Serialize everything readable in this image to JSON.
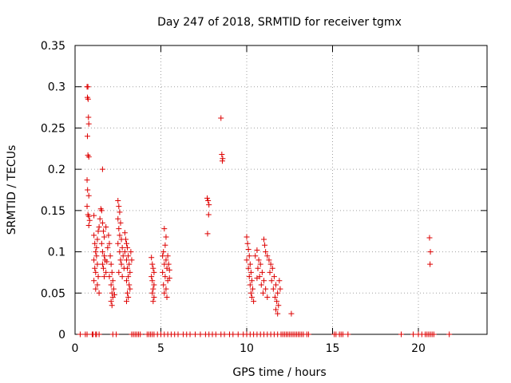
{
  "chart_data": {
    "type": "scatter",
    "title": "Day 247 of 2018, SRMTID for receiver tgmx",
    "xlabel": "GPS time / hours",
    "ylabel": "SRMTID / TECUs",
    "xlim": [
      0,
      24
    ],
    "ylim": [
      0,
      0.35
    ],
    "xticks": [
      0,
      5,
      10,
      15,
      20
    ],
    "xtick_labels": [
      "0",
      "5",
      "10",
      "15",
      "20"
    ],
    "yticks": [
      0,
      0.05,
      0.1,
      0.15,
      0.2,
      0.25,
      0.3,
      0.35
    ],
    "ytick_labels": [
      "0",
      "0.05",
      "0.1",
      "0.15",
      "0.2",
      "0.25",
      "0.3",
      "0.35"
    ],
    "grid": true,
    "marker": "+",
    "color": "#dd0000",
    "series": [
      {
        "name": "SRMTID",
        "points": [
          [
            0.7,
            0.3
          ],
          [
            0.75,
            0.3
          ],
          [
            0.72,
            0.287
          ],
          [
            0.76,
            0.285
          ],
          [
            0.78,
            0.263
          ],
          [
            0.8,
            0.255
          ],
          [
            0.72,
            0.24
          ],
          [
            0.75,
            0.217
          ],
          [
            0.8,
            0.215
          ],
          [
            0.7,
            0.187
          ],
          [
            0.73,
            0.175
          ],
          [
            0.8,
            0.168
          ],
          [
            0.7,
            0.155
          ],
          [
            0.75,
            0.145
          ],
          [
            0.8,
            0.143
          ],
          [
            0.85,
            0.138
          ],
          [
            0.8,
            0.132
          ],
          [
            1.1,
            0.144
          ],
          [
            1.1,
            0.12
          ],
          [
            1.15,
            0.11
          ],
          [
            1.2,
            0.1
          ],
          [
            1.25,
            0.095
          ],
          [
            1.1,
            0.09
          ],
          [
            1.3,
            0.085
          ],
          [
            1.15,
            0.08
          ],
          [
            1.2,
            0.075
          ],
          [
            1.35,
            0.07
          ],
          [
            1.1,
            0.065
          ],
          [
            1.3,
            0.06
          ],
          [
            1.2,
            0.055
          ],
          [
            1.4,
            0.05
          ],
          [
            1.25,
            0.105
          ],
          [
            1.3,
            0.115
          ],
          [
            1.35,
            0.125
          ],
          [
            1.4,
            0.13
          ],
          [
            1.45,
            0.14
          ],
          [
            1.6,
            0.2
          ],
          [
            1.5,
            0.152
          ],
          [
            1.55,
            0.15
          ],
          [
            1.6,
            0.135
          ],
          [
            1.65,
            0.125
          ],
          [
            1.7,
            0.118
          ],
          [
            1.55,
            0.11
          ],
          [
            1.6,
            0.1
          ],
          [
            1.7,
            0.095
          ],
          [
            1.75,
            0.09
          ],
          [
            1.6,
            0.085
          ],
          [
            1.65,
            0.08
          ],
          [
            1.8,
            0.075
          ],
          [
            1.7,
            0.07
          ],
          [
            1.85,
            0.088
          ],
          [
            1.9,
            0.105
          ],
          [
            1.95,
            0.12
          ],
          [
            1.8,
            0.13
          ],
          [
            2.0,
            0.11
          ],
          [
            2.05,
            0.095
          ],
          [
            2.1,
            0.085
          ],
          [
            2.15,
            0.075
          ],
          [
            2.0,
            0.07
          ],
          [
            2.2,
            0.065
          ],
          [
            2.1,
            0.06
          ],
          [
            2.25,
            0.055
          ],
          [
            2.15,
            0.05
          ],
          [
            2.2,
            0.045
          ],
          [
            2.1,
            0.04
          ],
          [
            2.15,
            0.035
          ],
          [
            2.3,
            0.048
          ],
          [
            2.5,
            0.162
          ],
          [
            2.55,
            0.155
          ],
          [
            2.6,
            0.148
          ],
          [
            2.5,
            0.14
          ],
          [
            2.65,
            0.135
          ],
          [
            2.55,
            0.128
          ],
          [
            2.6,
            0.12
          ],
          [
            2.7,
            0.115
          ],
          [
            2.5,
            0.11
          ],
          [
            2.75,
            0.105
          ],
          [
            2.6,
            0.1
          ],
          [
            2.8,
            0.095
          ],
          [
            2.65,
            0.09
          ],
          [
            2.7,
            0.085
          ],
          [
            2.85,
            0.08
          ],
          [
            2.55,
            0.075
          ],
          [
            2.75,
            0.07
          ],
          [
            2.9,
            0.123
          ],
          [
            2.95,
            0.115
          ],
          [
            3.0,
            0.11
          ],
          [
            3.05,
            0.105
          ],
          [
            2.9,
            0.1
          ],
          [
            3.1,
            0.095
          ],
          [
            3.0,
            0.09
          ],
          [
            3.15,
            0.085
          ],
          [
            3.05,
            0.08
          ],
          [
            3.2,
            0.075
          ],
          [
            3.1,
            0.07
          ],
          [
            3.0,
            0.065
          ],
          [
            3.15,
            0.06
          ],
          [
            3.2,
            0.055
          ],
          [
            3.05,
            0.05
          ],
          [
            3.1,
            0.045
          ],
          [
            3.0,
            0.04
          ],
          [
            3.25,
            0.1
          ],
          [
            3.3,
            0.09
          ],
          [
            4.45,
            0.093
          ],
          [
            4.5,
            0.085
          ],
          [
            4.55,
            0.08
          ],
          [
            4.6,
            0.075
          ],
          [
            4.45,
            0.07
          ],
          [
            4.5,
            0.065
          ],
          [
            4.6,
            0.06
          ],
          [
            4.55,
            0.055
          ],
          [
            4.5,
            0.05
          ],
          [
            4.6,
            0.045
          ],
          [
            4.55,
            0.04
          ],
          [
            5.1,
            0.095
          ],
          [
            5.2,
            0.128
          ],
          [
            5.3,
            0.118
          ],
          [
            5.25,
            0.108
          ],
          [
            5.15,
            0.1
          ],
          [
            5.3,
            0.09
          ],
          [
            5.2,
            0.085
          ],
          [
            5.35,
            0.08
          ],
          [
            5.1,
            0.075
          ],
          [
            5.25,
            0.07
          ],
          [
            5.4,
            0.065
          ],
          [
            5.15,
            0.06
          ],
          [
            5.3,
            0.055
          ],
          [
            5.2,
            0.05
          ],
          [
            5.45,
            0.085
          ],
          [
            5.5,
            0.078
          ],
          [
            5.4,
            0.095
          ],
          [
            5.35,
            0.045
          ],
          [
            5.5,
            0.068
          ],
          [
            7.7,
            0.165
          ],
          [
            7.75,
            0.162
          ],
          [
            7.8,
            0.157
          ],
          [
            7.78,
            0.145
          ],
          [
            7.72,
            0.122
          ],
          [
            8.5,
            0.262
          ],
          [
            8.55,
            0.218
          ],
          [
            8.6,
            0.213
          ],
          [
            8.58,
            0.21
          ],
          [
            10.0,
            0.118
          ],
          [
            10.05,
            0.11
          ],
          [
            10.1,
            0.103
          ],
          [
            10.15,
            0.095
          ],
          [
            10.0,
            0.09
          ],
          [
            10.2,
            0.085
          ],
          [
            10.1,
            0.08
          ],
          [
            10.25,
            0.075
          ],
          [
            10.15,
            0.07
          ],
          [
            10.3,
            0.065
          ],
          [
            10.2,
            0.06
          ],
          [
            10.35,
            0.055
          ],
          [
            10.25,
            0.05
          ],
          [
            10.3,
            0.045
          ],
          [
            10.4,
            0.04
          ],
          [
            10.5,
            0.095
          ],
          [
            10.6,
            0.102
          ],
          [
            10.7,
            0.09
          ],
          [
            10.8,
            0.085
          ],
          [
            10.65,
            0.08
          ],
          [
            10.9,
            0.075
          ],
          [
            10.75,
            0.07
          ],
          [
            11.0,
            0.065
          ],
          [
            10.85,
            0.06
          ],
          [
            11.1,
            0.055
          ],
          [
            10.95,
            0.05
          ],
          [
            11.2,
            0.045
          ],
          [
            10.6,
            0.068
          ],
          [
            11.0,
            0.115
          ],
          [
            11.05,
            0.108
          ],
          [
            11.1,
            0.1
          ],
          [
            11.2,
            0.095
          ],
          [
            11.3,
            0.09
          ],
          [
            11.4,
            0.085
          ],
          [
            11.5,
            0.08
          ],
          [
            11.35,
            0.075
          ],
          [
            11.6,
            0.07
          ],
          [
            11.45,
            0.065
          ],
          [
            11.7,
            0.06
          ],
          [
            11.55,
            0.055
          ],
          [
            11.8,
            0.05
          ],
          [
            11.65,
            0.045
          ],
          [
            11.75,
            0.04
          ],
          [
            11.85,
            0.035
          ],
          [
            11.7,
            0.03
          ],
          [
            11.8,
            0.025
          ],
          [
            11.9,
            0.065
          ],
          [
            11.95,
            0.055
          ],
          [
            12.6,
            0.025
          ],
          [
            20.65,
            0.117
          ],
          [
            20.7,
            0.1
          ],
          [
            20.68,
            0.085
          ]
        ]
      }
    ],
    "zero_points_x": [
      0.3,
      0.6,
      0.7,
      1.0,
      1.05,
      1.2,
      1.25,
      1.4,
      2.2,
      2.4,
      3.3,
      3.4,
      3.5,
      3.6,
      3.7,
      3.8,
      4.2,
      4.3,
      4.4,
      4.5,
      4.6,
      4.8,
      5.0,
      5.2,
      5.4,
      5.6,
      5.8,
      6.0,
      6.3,
      6.5,
      6.7,
      7.0,
      7.3,
      7.6,
      7.8,
      8.0,
      8.2,
      8.5,
      8.7,
      9.0,
      9.2,
      9.5,
      9.8,
      10.0,
      10.2,
      10.4,
      10.6,
      10.8,
      11.0,
      11.2,
      11.4,
      11.6,
      11.8,
      12.0,
      12.1,
      12.2,
      12.3,
      12.4,
      12.5,
      12.6,
      12.7,
      12.8,
      12.9,
      13.0,
      13.1,
      13.2,
      13.3,
      13.5,
      13.6,
      15.1,
      15.2,
      15.4,
      15.5,
      15.6,
      15.9,
      19.0,
      19.7,
      20.0,
      20.2,
      20.4,
      20.5,
      20.6,
      20.7,
      20.8,
      20.9,
      21.8
    ]
  }
}
